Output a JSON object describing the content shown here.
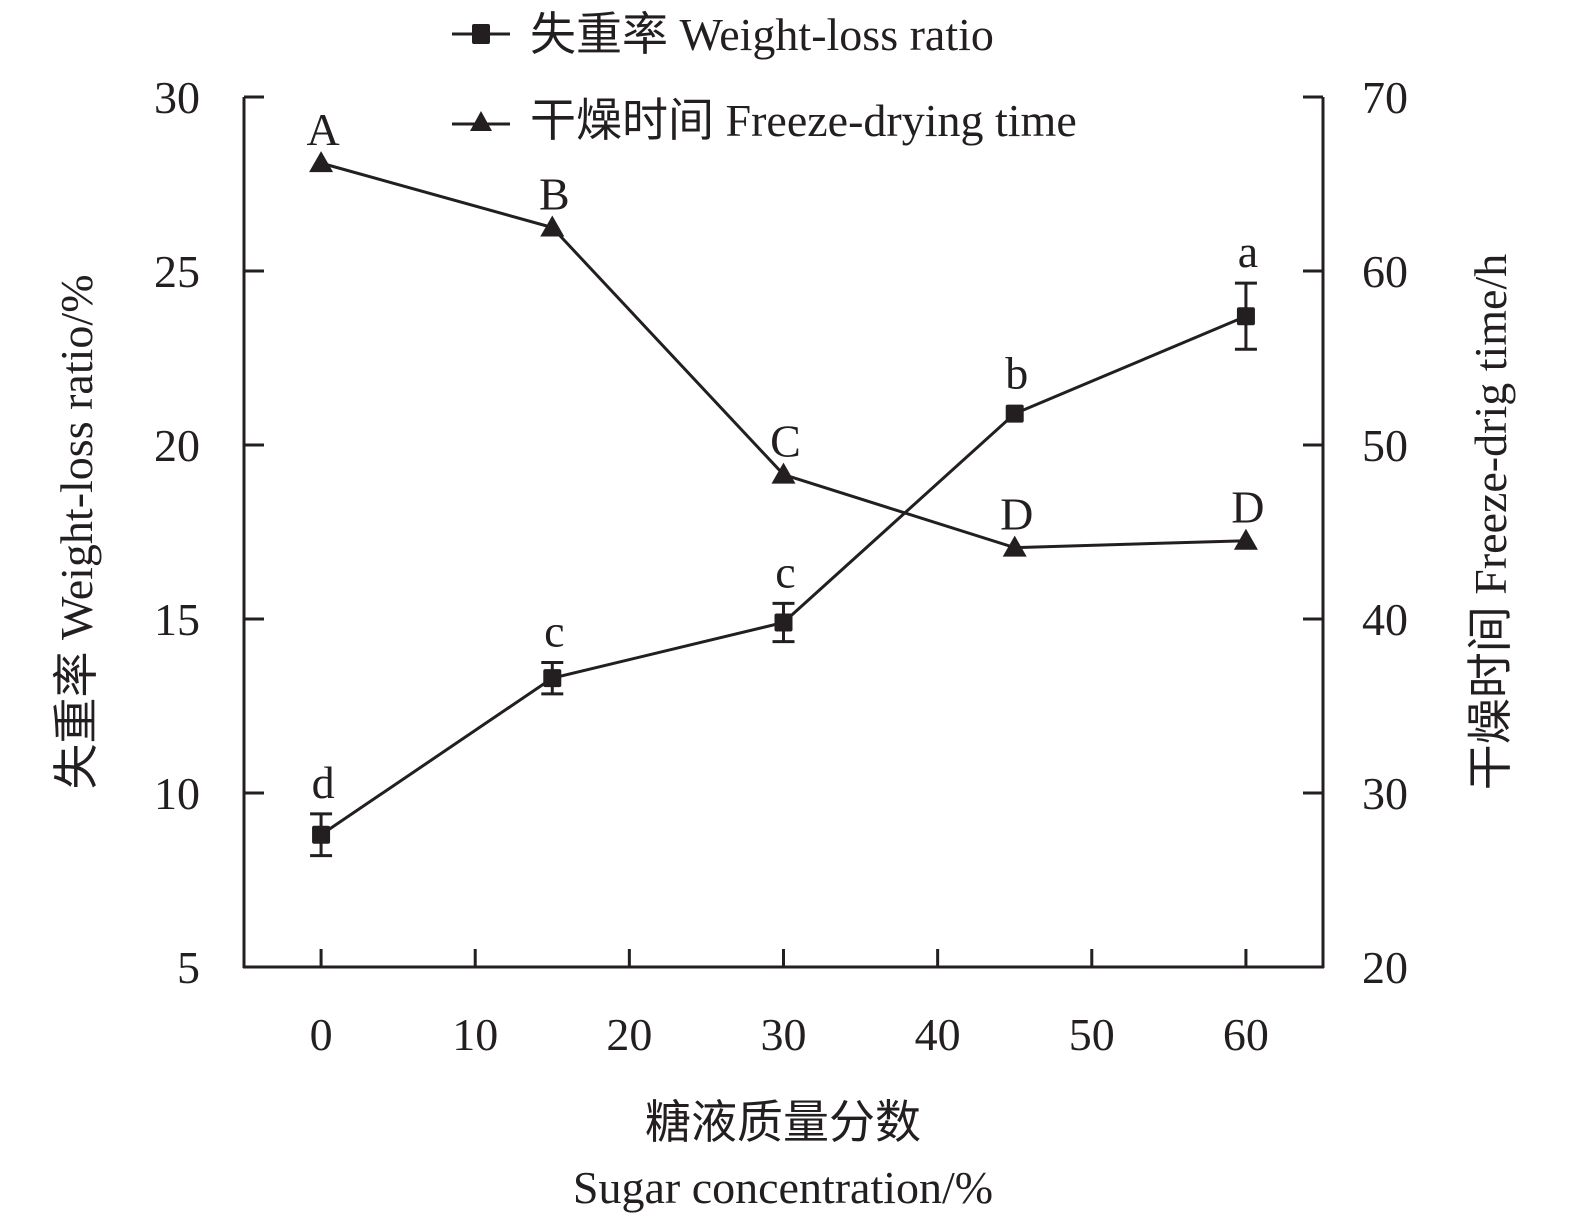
{
  "chart_data": {
    "type": "line",
    "title": "",
    "xlabel": [
      "糖液质量分数",
      "Sugar concentration/%"
    ],
    "ylabel_left": "失重率 Weight-loss ratio/%",
    "ylabel_right": "干燥时间 Freeze-drig time/h",
    "x": [
      0,
      15,
      30,
      45,
      60
    ],
    "xlim": [
      -5,
      65
    ],
    "x_ticks": [
      0,
      10,
      20,
      30,
      40,
      50,
      60
    ],
    "x_tick_labels": [
      "0",
      "10",
      "20",
      "30",
      "40",
      "50",
      "60"
    ],
    "ylim_left": [
      5,
      30
    ],
    "y_ticks_left": [
      5,
      10,
      15,
      20,
      25,
      30
    ],
    "y_tick_labels_left": [
      "5",
      "10",
      "15",
      "20",
      "25",
      "30"
    ],
    "ylim_right": [
      20,
      70
    ],
    "y_ticks_right": [
      20,
      30,
      40,
      50,
      60,
      70
    ],
    "y_tick_labels_right": [
      "20",
      "30",
      "40",
      "50",
      "60",
      "70"
    ],
    "grid": false,
    "legend_position": "top-center",
    "series": [
      {
        "name": "失重率 Weight-loss ratio",
        "axis": "left",
        "marker": "square",
        "values": [
          8.8,
          13.3,
          14.9,
          20.9,
          23.7
        ],
        "errors": [
          0.6,
          0.45,
          0.55,
          0.1,
          0.95
        ],
        "labels": [
          "d",
          "c",
          "c",
          "b",
          "a"
        ]
      },
      {
        "name": "干燥时间 Freeze-drying time",
        "axis": "right",
        "marker": "triangle",
        "values": [
          66.2,
          62.5,
          48.3,
          44.1,
          44.5
        ],
        "errors": [
          0,
          0,
          0,
          0,
          0
        ],
        "labels": [
          "A",
          "B",
          "C",
          "D",
          "D"
        ]
      }
    ],
    "colors": {
      "ink": "#231f20",
      "background": "#ffffff"
    }
  }
}
